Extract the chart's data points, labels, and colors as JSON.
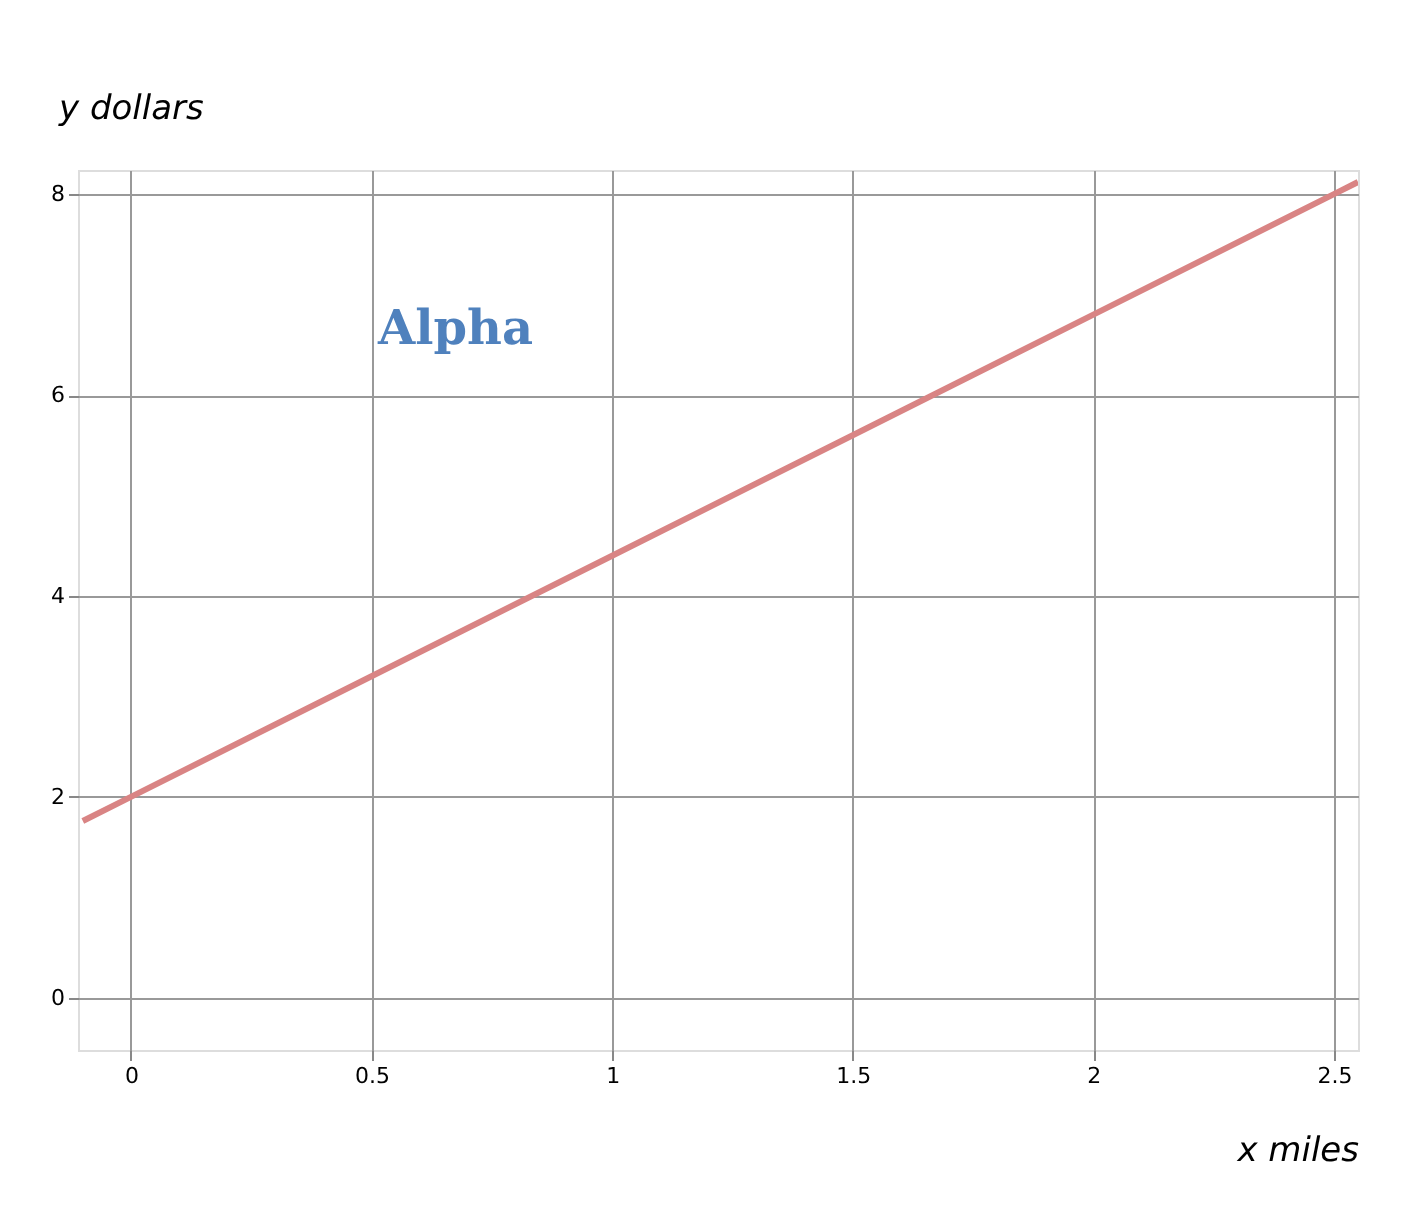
{
  "chart_data": {
    "type": "line",
    "xlabel": "x miles",
    "ylabel": "y dollars",
    "annotations": [
      "Alpha"
    ],
    "x": [
      -0.1,
      0,
      0.5,
      1,
      1.5,
      2,
      2.5,
      2.55
    ],
    "series": [
      {
        "color": "#d98484",
        "values": [
          1.76,
          2,
          3.2,
          4.4,
          5.6,
          6.8,
          8,
          8.12
        ]
      }
    ],
    "xlim": [
      -0.11,
      2.55
    ],
    "ylim": [
      -0.52,
      8.24
    ],
    "xticks": [
      0,
      0.5,
      1,
      1.5,
      2,
      2.5
    ],
    "yticks": [
      0,
      2,
      4,
      6,
      8
    ],
    "grid": true,
    "marker": "none",
    "line_style": "solid"
  }
}
